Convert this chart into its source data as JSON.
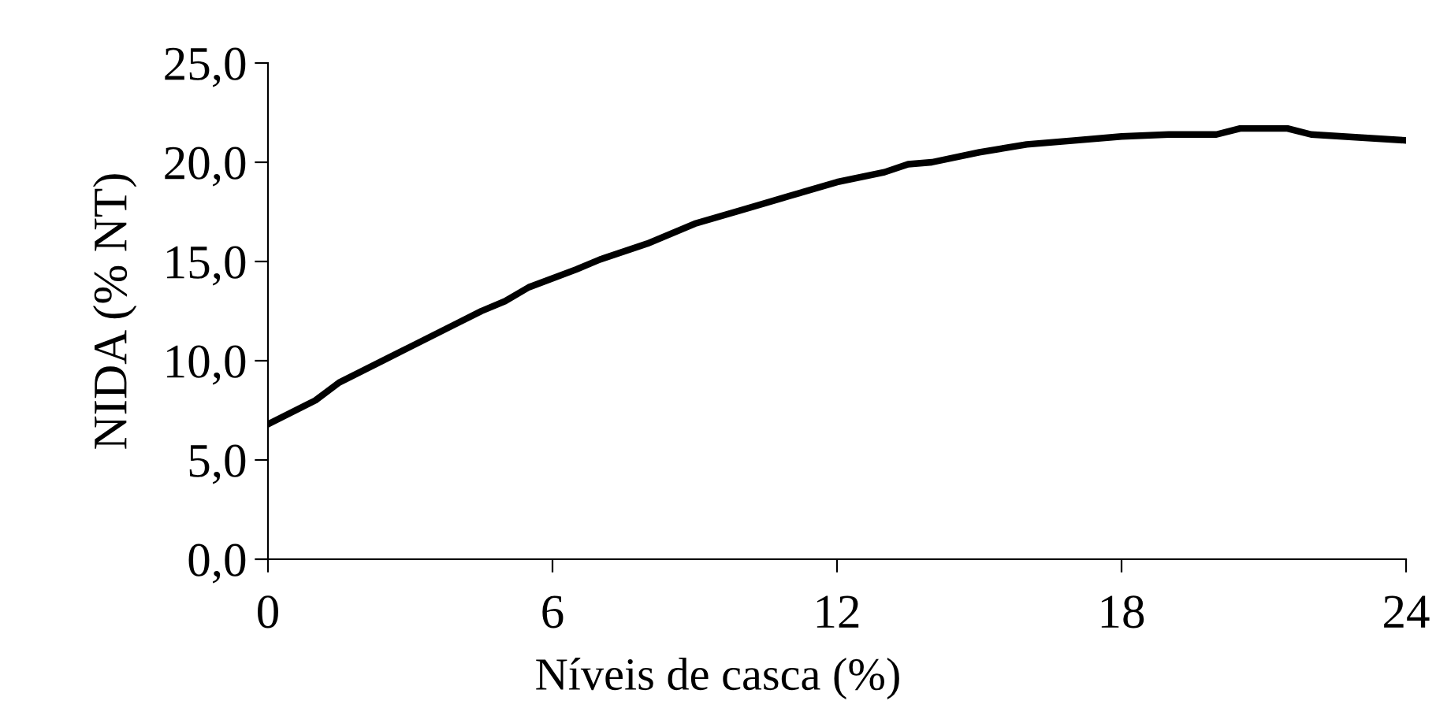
{
  "chart_data": {
    "type": "line",
    "xlabel": "Níveis de casca (%)",
    "ylabel": "NIDA (% NT)",
    "x": [
      0,
      1,
      1.5,
      2.5,
      3,
      4,
      4.5,
      5,
      5.5,
      6.5,
      7,
      8,
      9,
      10,
      11,
      12,
      13,
      13.5,
      14,
      15,
      16,
      17,
      18,
      19,
      20,
      20.5,
      21.5,
      22,
      24
    ],
    "series": [
      {
        "color": "#000000",
        "values": [
          6.8,
          8.0,
          8.9,
          10.1,
          10.7,
          11.9,
          12.5,
          13.0,
          13.7,
          14.6,
          15.1,
          15.9,
          16.9,
          17.6,
          18.3,
          19.0,
          19.5,
          19.9,
          20.0,
          20.5,
          20.9,
          21.1,
          21.3,
          21.4,
          21.4,
          21.7,
          21.7,
          21.4,
          21.1
        ]
      }
    ],
    "xlim": [
      0,
      24
    ],
    "xticks": [
      0,
      6,
      12,
      18,
      24
    ],
    "ylim": [
      0,
      25
    ],
    "yticks": [
      {
        "value": 0,
        "label": "0,0"
      },
      {
        "value": 5,
        "label": "5,0"
      },
      {
        "value": 10,
        "label": "10,0"
      },
      {
        "value": 15,
        "label": "15,0"
      },
      {
        "value": 20,
        "label": "20,0"
      },
      {
        "value": 25,
        "label": "25,0"
      }
    ],
    "grid": false,
    "legend": false,
    "marker": "none",
    "line_style": "solid"
  }
}
